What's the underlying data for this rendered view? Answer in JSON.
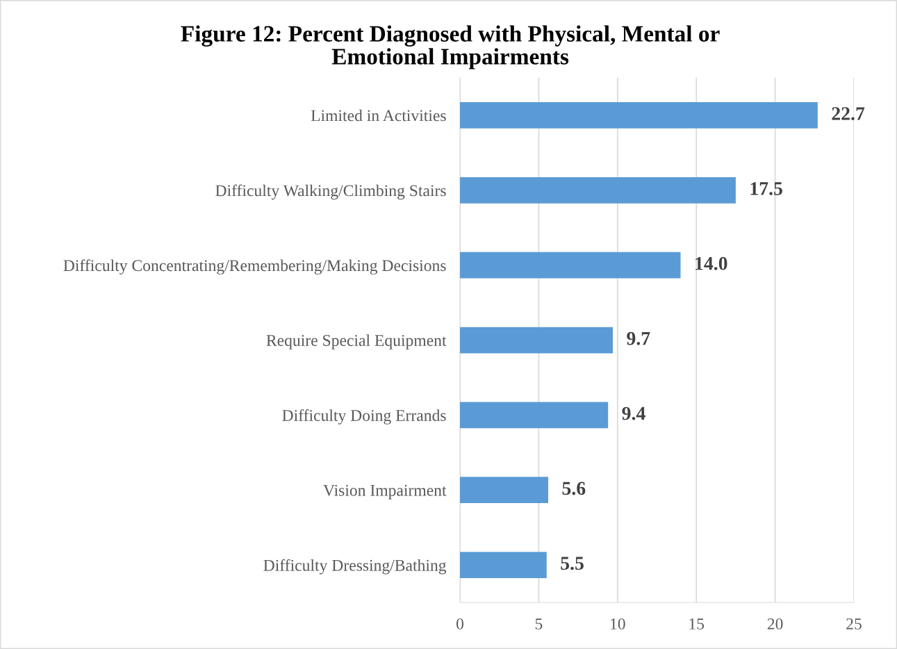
{
  "chart_data": {
    "type": "bar",
    "orientation": "horizontal",
    "title": "Figure 12: Percent Diagnosed with Physical, Mental or\nEmotional Impairments",
    "categories": [
      "Limited in Activities",
      "Difficulty Walking/Climbing Stairs",
      "Difficulty Concentrating/Remembering/Making Decisions",
      "Require Special Equipment",
      "Difficulty Doing Errands",
      "Vision Impairment",
      "Difficulty Dressing/Bathing"
    ],
    "values": [
      22.7,
      17.5,
      14.0,
      9.7,
      9.4,
      5.6,
      5.5
    ],
    "value_labels": [
      "22.7",
      "17.5",
      "14.0",
      "9.7",
      "9.4",
      "5.6",
      "5.5"
    ],
    "color": "#5b9bd5",
    "xlim": [
      0,
      25
    ],
    "xticks": [
      0,
      5,
      10,
      15,
      20,
      25
    ],
    "grid": "x"
  }
}
